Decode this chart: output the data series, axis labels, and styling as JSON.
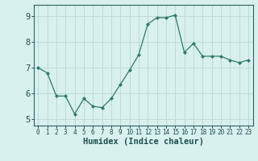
{
  "x": [
    0,
    1,
    2,
    3,
    4,
    5,
    6,
    7,
    8,
    9,
    10,
    11,
    12,
    13,
    14,
    15,
    16,
    17,
    18,
    19,
    20,
    21,
    22,
    23
  ],
  "y": [
    7.0,
    6.8,
    5.9,
    5.9,
    5.2,
    5.8,
    5.5,
    5.45,
    5.8,
    6.35,
    6.9,
    7.5,
    8.7,
    8.95,
    8.95,
    9.05,
    7.6,
    7.95,
    7.45,
    7.45,
    7.45,
    7.3,
    7.2,
    7.3
  ],
  "title": "",
  "xlabel": "Humidex (Indice chaleur)",
  "ylabel": "",
  "xlim": [
    -0.5,
    23.5
  ],
  "ylim": [
    4.75,
    9.45
  ],
  "yticks": [
    5,
    6,
    7,
    8,
    9
  ],
  "xticks": [
    0,
    1,
    2,
    3,
    4,
    5,
    6,
    7,
    8,
    9,
    10,
    11,
    12,
    13,
    14,
    15,
    16,
    17,
    18,
    19,
    20,
    21,
    22,
    23
  ],
  "xtick_labels": [
    "0",
    "1",
    "2",
    "3",
    "4",
    "5",
    "6",
    "7",
    "8",
    "9",
    "10",
    "11",
    "12",
    "13",
    "14",
    "15",
    "16",
    "17",
    "18",
    "19",
    "20",
    "21",
    "22",
    "23"
  ],
  "line_color": "#2d7a6b",
  "marker_color": "#2d7a6b",
  "bg_color": "#d8f0ee",
  "grid_color": "#c0d8d8",
  "axis_color": "#2d6060",
  "label_color": "#1a5050",
  "tick_label_color": "#1a5050",
  "xlabel_fontsize": 7.5,
  "ytick_fontsize": 7.5,
  "xtick_fontsize": 5.5
}
